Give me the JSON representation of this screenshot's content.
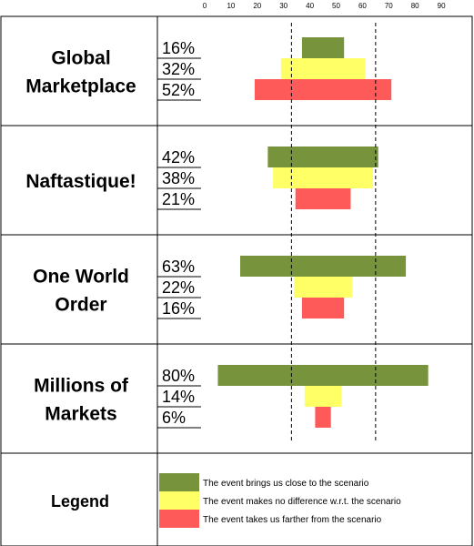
{
  "colors": {
    "closer": "#77933C",
    "no_difference": "#FFFF66",
    "farther": "#FF5A5A"
  },
  "chart_data": {
    "type": "bar",
    "orientation": "horizontal",
    "layout": "centered-stacked-bars",
    "x_ticks": [
      "0",
      "10",
      "20",
      "30",
      "40",
      "50",
      "60",
      "70",
      "80",
      "90"
    ],
    "xlim": [
      0,
      90
    ],
    "reference_lines": [
      33,
      65
    ],
    "series": [
      {
        "name": "The event brings us close to the scenario",
        "key": "closer"
      },
      {
        "name": "The event makes no difference w.r.t. the scenario",
        "key": "no_difference"
      },
      {
        "name": "The event takes us farther from the scenario",
        "key": "farther"
      }
    ],
    "scenarios": [
      {
        "name_lines": [
          "Global",
          "Marketplace"
        ],
        "values": [
          16,
          32,
          52
        ],
        "labels": [
          "16%",
          "32%",
          "52%"
        ]
      },
      {
        "name_lines": [
          "Naftastique!"
        ],
        "values": [
          42,
          38,
          21
        ],
        "labels": [
          "42%",
          "38%",
          "21%"
        ]
      },
      {
        "name_lines": [
          "One World",
          "Order"
        ],
        "values": [
          63,
          22,
          16
        ],
        "labels": [
          "63%",
          "22%",
          "16%"
        ]
      },
      {
        "name_lines": [
          "Millions of",
          "Markets"
        ],
        "values": [
          80,
          14,
          6
        ],
        "labels": [
          "80%",
          "14%",
          "6%"
        ]
      }
    ],
    "legend": {
      "title": "Legend",
      "entries": [
        "The event brings us close to the scenario",
        "The event makes no difference w.r.t. the scenario",
        "The event takes us farther from the scenario"
      ]
    }
  }
}
